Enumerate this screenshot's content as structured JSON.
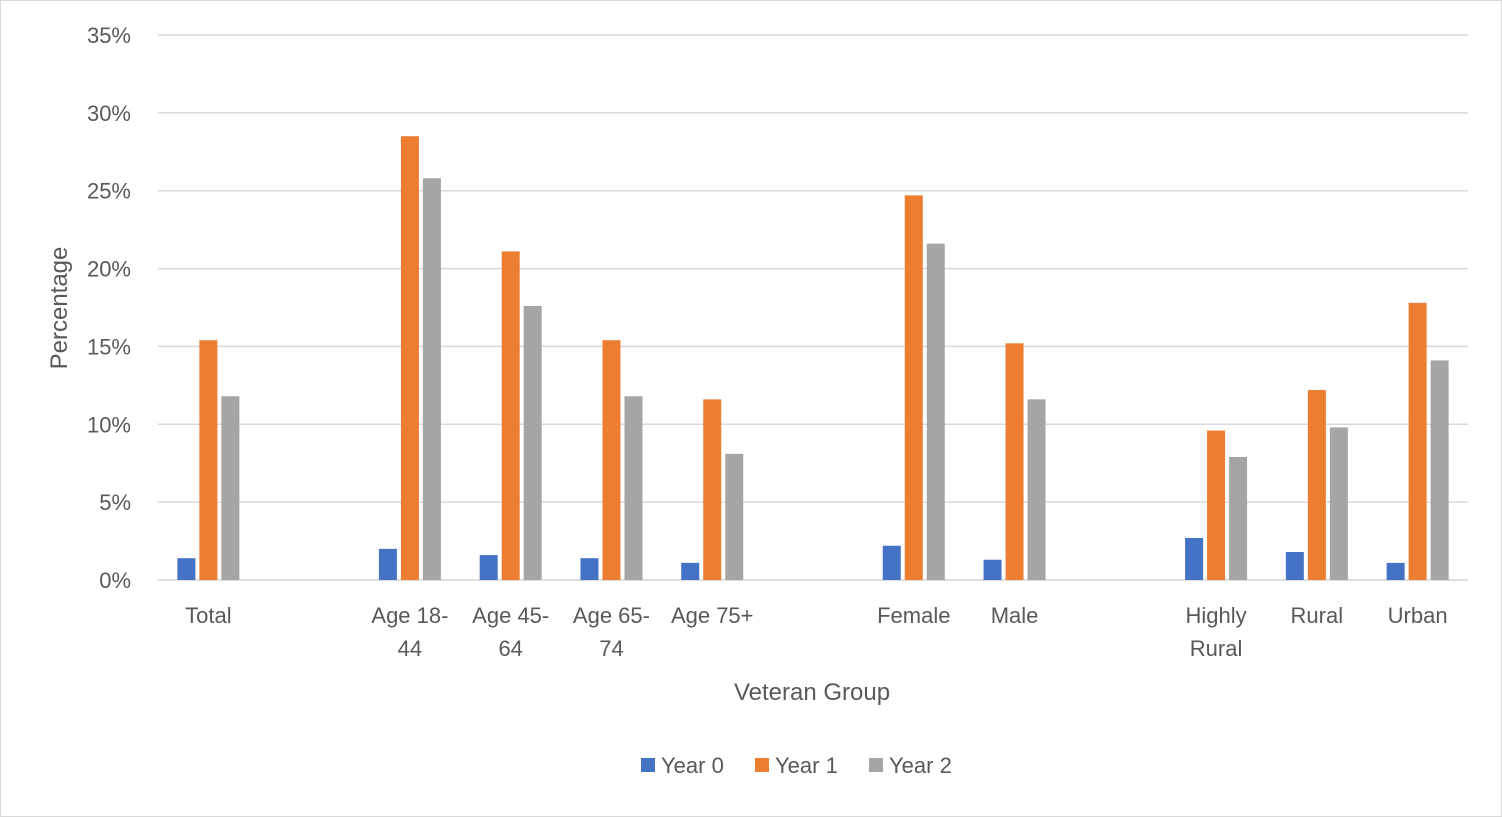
{
  "chart_data": {
    "type": "bar",
    "xlabel": "Veteran Group",
    "ylabel": "Percentage",
    "ylim": [
      0,
      35
    ],
    "yticks": [
      0,
      5,
      10,
      15,
      20,
      25,
      30,
      35
    ],
    "ytick_labels": [
      "0%",
      "5%",
      "10%",
      "15%",
      "20%",
      "25%",
      "30%",
      "35%"
    ],
    "grid": true,
    "legend_position": "bottom",
    "categories": [
      "Total",
      "",
      "Age 18-\n44",
      "Age 45-\n64",
      "Age 65-\n74",
      "Age 75+",
      "",
      "Female",
      "Male",
      "",
      "Highly\nRural",
      "Rural",
      "Urban"
    ],
    "series": [
      {
        "name": "Year 0",
        "color": "#4472C4",
        "values": [
          1.4,
          null,
          2.0,
          1.6,
          1.4,
          1.1,
          null,
          2.2,
          1.3,
          null,
          2.7,
          1.8,
          1.1
        ]
      },
      {
        "name": "Year 1",
        "color": "#ED7D31",
        "values": [
          15.4,
          null,
          28.5,
          21.1,
          15.4,
          11.6,
          null,
          24.7,
          15.2,
          null,
          9.6,
          12.2,
          17.8
        ]
      },
      {
        "name": "Year 2",
        "color": "#A5A5A5",
        "values": [
          11.8,
          null,
          25.8,
          17.6,
          11.8,
          8.1,
          null,
          21.6,
          11.6,
          null,
          7.9,
          9.8,
          14.1
        ]
      }
    ]
  }
}
